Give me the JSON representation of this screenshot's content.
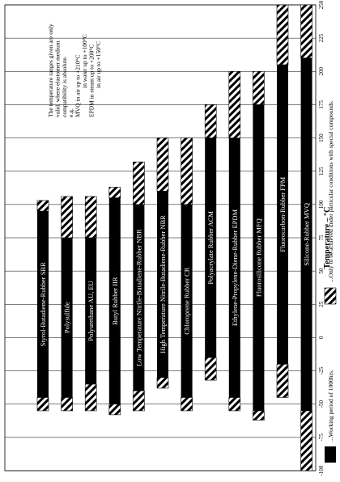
{
  "chart_data": {
    "type": "bar",
    "orientation": "horizontal-range",
    "xlabel": "Temperature – °C",
    "xlim": [
      -100,
      250
    ],
    "xticks": [
      250,
      225,
      200,
      175,
      150,
      125,
      100,
      75,
      50,
      25,
      0,
      -25,
      -50,
      -75,
      -100
    ],
    "grid": "vertical lines at ticks",
    "series": [
      {
        "name": "Styrol-Butadiene-Rubber  SBR",
        "solid": [
          -45,
          95
        ],
        "hatched_low": [
          -55,
          -45
        ],
        "hatched_high": [
          95,
          103
        ]
      },
      {
        "name": "Polysulfide",
        "solid": [
          -45,
          75
        ],
        "hatched_low": [
          -55,
          -45
        ],
        "hatched_high": [
          75,
          106
        ]
      },
      {
        "name": "Polyurethane  AU, EU",
        "solid": [
          -35,
          75
        ],
        "hatched_low": [
          -55,
          -35
        ],
        "hatched_high": [
          75,
          106
        ]
      },
      {
        "name": "Butyl Rubber  IIR",
        "solid": [
          -50,
          105
        ],
        "hatched_low": [
          -58,
          -50
        ],
        "hatched_high": [
          105,
          113
        ]
      },
      {
        "name": "Low Temperature Nitrile-Butadiene-Rubber  NBR",
        "solid": [
          -40,
          100
        ],
        "hatched_low": [
          -55,
          -40
        ],
        "hatched_high": [
          100,
          132
        ]
      },
      {
        "name": "High Temperature Nitrile-Butadiene-Rubber  NBR",
        "solid": [
          -30,
          110
        ],
        "hatched_low": [
          -38,
          -30
        ],
        "hatched_high": [
          110,
          150
        ]
      },
      {
        "name": "Chloroprene Rubber  CR",
        "solid": [
          -45,
          100
        ],
        "hatched_low": [
          -55,
          -45
        ],
        "hatched_high": [
          100,
          150
        ]
      },
      {
        "name": "Polyacrylate Rubber  ACM",
        "solid": [
          -15,
          150
        ],
        "hatched_low": [
          -32,
          -15
        ],
        "hatched_high": [
          150,
          175
        ]
      },
      {
        "name": "Ethylene-Propylene-Diene-Rubber  EPDM",
        "solid": [
          -45,
          150
        ],
        "hatched_low": [
          -55,
          -45
        ],
        "hatched_high": [
          150,
          200
        ]
      },
      {
        "name": "Fluorosilicone Rubber  MFQ",
        "solid": [
          -55,
          175
        ],
        "hatched_low": [
          -62,
          -55
        ],
        "hatched_high": [
          175,
          200
        ]
      },
      {
        "name": "Fluorocarbon-Rubber  FPM",
        "solid": [
          -20,
          205
        ],
        "hatched_low": [
          -45,
          -20
        ],
        "hatched_high": [
          205,
          250
        ]
      },
      {
        "name": "Silicone-Rubber  MVQ",
        "solid": [
          -55,
          210
        ],
        "hatched_low": [
          -100,
          -55
        ],
        "hatched_high": [
          210,
          250
        ]
      }
    ],
    "note": [
      "The temperature ranges given are only",
      "valid, where elastomer medium",
      "compatibility is absolute.",
      "e.g.",
      "MVQ in air up to +210°C",
      "in water up to +100°C",
      "EPDM in steam up to +200°C",
      "in air up to +150°C"
    ],
    "legend": {
      "solid": "...Working period of 1000hrs.",
      "hatched": "...Only to be achieved under particular conditions with special compounds."
    }
  }
}
